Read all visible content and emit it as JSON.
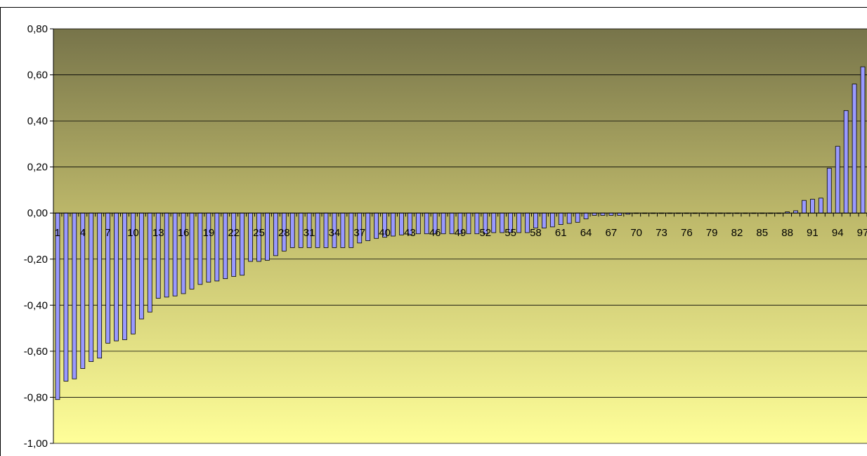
{
  "chart_data": {
    "type": "bar",
    "title": "",
    "xlabel": "",
    "ylabel": "",
    "ylim": [
      -1.0,
      0.8
    ],
    "y_tick_step": 0.2,
    "y_tick_labels": [
      "0,80",
      "0,60",
      "0,40",
      "0,20",
      "0,00",
      "-0,20",
      "-0,40",
      "-0,60",
      "-0,80",
      "-1,00"
    ],
    "x_tick_labels": [
      "1",
      "4",
      "7",
      "10",
      "13",
      "16",
      "19",
      "22",
      "25",
      "28",
      "31",
      "34",
      "37",
      "40",
      "43",
      "46",
      "49",
      "52",
      "55",
      "58",
      "61",
      "64",
      "67",
      "70",
      "73",
      "76",
      "79",
      "82",
      "85",
      "88",
      "91",
      "94",
      "97"
    ],
    "x_tick_every": 3,
    "grid": true,
    "legend": "none",
    "colors": {
      "bar_fill": "#9999ff",
      "bar_stroke": "#000000",
      "plot_bg_top": "#77744a",
      "plot_bg_mid": "#bdb86a",
      "plot_bg_bottom": "#ffff99",
      "gridline": "#000000"
    },
    "categories": [
      1,
      2,
      3,
      4,
      5,
      6,
      7,
      8,
      9,
      10,
      11,
      12,
      13,
      14,
      15,
      16,
      17,
      18,
      19,
      20,
      21,
      22,
      23,
      24,
      25,
      26,
      27,
      28,
      29,
      30,
      31,
      32,
      33,
      34,
      35,
      36,
      37,
      38,
      39,
      40,
      41,
      42,
      43,
      44,
      45,
      46,
      47,
      48,
      49,
      50,
      51,
      52,
      53,
      54,
      55,
      56,
      57,
      58,
      59,
      60,
      61,
      62,
      63,
      64,
      65,
      66,
      67,
      68,
      69,
      70,
      71,
      72,
      73,
      74,
      75,
      76,
      77,
      78,
      79,
      80,
      81,
      82,
      83,
      84,
      85,
      86,
      87,
      88,
      89,
      90,
      91,
      92,
      93,
      94,
      95,
      96,
      97
    ],
    "values": [
      -0.81,
      -0.73,
      -0.72,
      -0.675,
      -0.645,
      -0.63,
      -0.565,
      -0.555,
      -0.55,
      -0.525,
      -0.46,
      -0.43,
      -0.37,
      -0.365,
      -0.36,
      -0.35,
      -0.33,
      -0.31,
      -0.3,
      -0.295,
      -0.285,
      -0.275,
      -0.27,
      -0.21,
      -0.21,
      -0.205,
      -0.185,
      -0.165,
      -0.15,
      -0.15,
      -0.15,
      -0.15,
      -0.15,
      -0.15,
      -0.15,
      -0.15,
      -0.13,
      -0.12,
      -0.11,
      -0.105,
      -0.1,
      -0.095,
      -0.095,
      -0.09,
      -0.09,
      -0.09,
      -0.09,
      -0.09,
      -0.09,
      -0.09,
      -0.09,
      -0.09,
      -0.085,
      -0.085,
      -0.085,
      -0.085,
      -0.085,
      -0.065,
      -0.065,
      -0.06,
      -0.05,
      -0.045,
      -0.04,
      -0.025,
      -0.01,
      -0.01,
      -0.01,
      -0.01,
      -0.005,
      0,
      0,
      0,
      0,
      0,
      0,
      0,
      0,
      0,
      0,
      0,
      0,
      0,
      0,
      0,
      0,
      0,
      0,
      0.005,
      0.01,
      0.055,
      0.06,
      0.065,
      0.195,
      0.29,
      0.445,
      0.56,
      0.635
    ]
  }
}
